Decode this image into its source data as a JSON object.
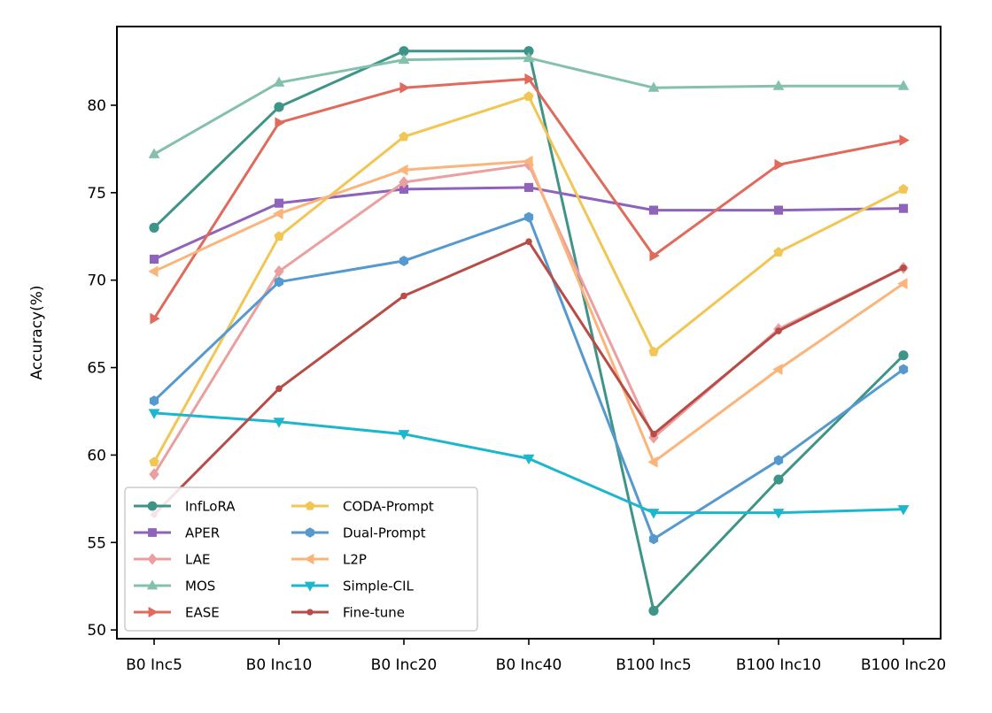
{
  "chart_data": {
    "type": "line",
    "xlabel": "",
    "ylabel": "Accuracy(%)",
    "categories": [
      "B0 Inc5",
      "B0 Inc10",
      "B0 Inc20",
      "B0 Inc40",
      "B100 Inc5",
      "B100 Inc10",
      "B100 Inc20"
    ],
    "ylim": [
      49.5,
      84.5
    ],
    "yticks": [
      50,
      55,
      60,
      65,
      70,
      75,
      80
    ],
    "grid": false,
    "legend_position": "lower-left",
    "legend_columns": 2,
    "series": [
      {
        "name": "InfLoRA",
        "color": "#3f9488",
        "marker": "circle",
        "values": [
          73.0,
          79.9,
          83.1,
          83.1,
          51.1,
          58.6,
          65.7
        ]
      },
      {
        "name": "APER",
        "color": "#9063bb",
        "marker": "square",
        "values": [
          71.2,
          74.4,
          75.2,
          75.3,
          74.0,
          74.0,
          74.1
        ]
      },
      {
        "name": "LAE",
        "color": "#eb9f9f",
        "marker": "diamond",
        "values": [
          58.9,
          70.5,
          75.6,
          76.6,
          61.0,
          67.2,
          70.7
        ]
      },
      {
        "name": "MOS",
        "color": "#84c1ad",
        "marker": "triangle-up",
        "values": [
          77.2,
          81.3,
          82.6,
          82.7,
          81.0,
          81.1,
          81.1
        ]
      },
      {
        "name": "EASE",
        "color": "#e06a5c",
        "marker": "triangle-right",
        "values": [
          67.8,
          79.0,
          81.0,
          81.5,
          71.4,
          76.6,
          78.0
        ]
      },
      {
        "name": "CODA-Prompt",
        "color": "#f2c654",
        "marker": "pentagon",
        "values": [
          59.6,
          72.5,
          78.2,
          80.5,
          65.9,
          71.6,
          75.2
        ]
      },
      {
        "name": "Dual-Prompt",
        "color": "#5599cf",
        "marker": "hexagon",
        "values": [
          63.1,
          69.9,
          71.1,
          73.6,
          55.2,
          59.7,
          64.9
        ]
      },
      {
        "name": "L2P",
        "color": "#fbb47a",
        "marker": "triangle-left",
        "values": [
          70.5,
          73.8,
          76.3,
          76.8,
          59.6,
          64.9,
          69.8
        ]
      },
      {
        "name": "Simple-CIL",
        "color": "#1cb6cd",
        "marker": "triangle-down",
        "values": [
          62.4,
          61.9,
          61.2,
          59.8,
          56.7,
          56.7,
          56.9
        ]
      },
      {
        "name": "Fine-tune",
        "color": "#b84c46",
        "marker": "point",
        "values": [
          56.6,
          63.8,
          69.1,
          72.2,
          61.2,
          67.1,
          70.7
        ]
      }
    ]
  }
}
